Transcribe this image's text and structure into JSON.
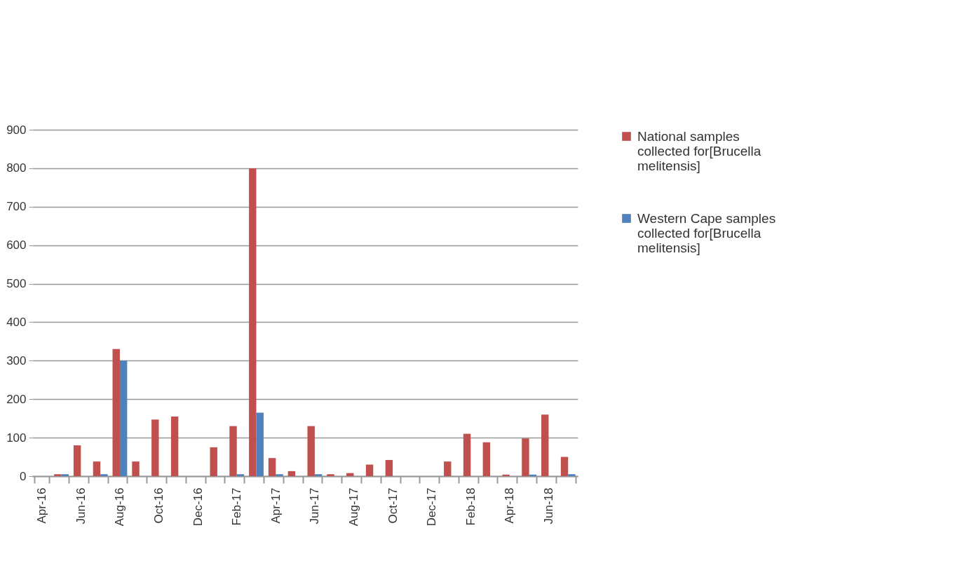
{
  "chart_data": {
    "type": "bar",
    "categories": [
      "Apr-16",
      null,
      "Jun-16",
      null,
      "Aug-16",
      null,
      "Oct-16",
      null,
      "Dec-16",
      null,
      "Feb-17",
      null,
      "Apr-17",
      null,
      "Jun-17",
      null,
      "Aug-17",
      null,
      "Oct-17",
      null,
      "Dec-17",
      null,
      "Feb-18",
      null,
      "Apr-18",
      null,
      "Jun-18",
      null
    ],
    "series": [
      {
        "name": "National samples collected for[Brucella melitensis]",
        "color": "#c0504d",
        "values": [
          0,
          5,
          80,
          38,
          330,
          38,
          147,
          155,
          0,
          75,
          130,
          800,
          47,
          13,
          130,
          5,
          8,
          30,
          42,
          0,
          0,
          38,
          110,
          88,
          4,
          98,
          160,
          50
        ]
      },
      {
        "name": "Western Cape samples collected for[Brucella melitensis]",
        "color": "#4f81bd",
        "values": [
          0,
          5,
          0,
          5,
          300,
          0,
          0,
          0,
          0,
          0,
          5,
          165,
          5,
          0,
          5,
          0,
          0,
          0,
          0,
          0,
          0,
          0,
          0,
          0,
          0,
          4,
          0,
          5
        ]
      }
    ],
    "ylim": [
      0,
      900
    ],
    "yticks": [
      0,
      100,
      200,
      300,
      400,
      500,
      600,
      700,
      800,
      900
    ],
    "grid": "y",
    "legend": "right"
  }
}
